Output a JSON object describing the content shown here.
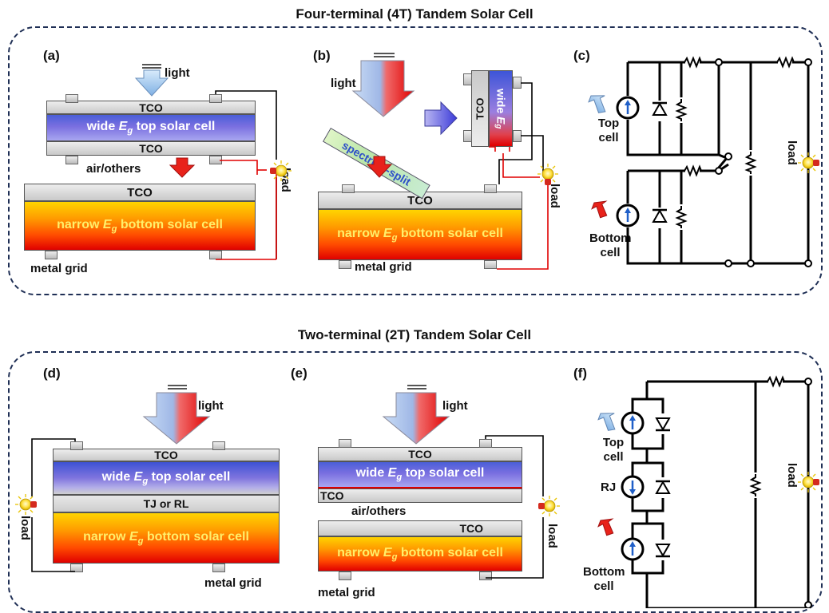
{
  "titles": {
    "four_terminal": "Four-terminal (4T) Tandem Solar Cell",
    "two_terminal": "Two-terminal (2T) Tandem Solar Cell"
  },
  "panels": {
    "a": {
      "label": "(a)",
      "light": "light",
      "tco_top": "TCO",
      "wide_cell": "wide Eg top solar cell",
      "tco_mid": "TCO",
      "air": "air/others",
      "tco_bottom": "TCO",
      "narrow_cell": "narrow Eg bottom solar cell",
      "metal_grid": "metal grid",
      "load": "load"
    },
    "b": {
      "label": "(b)",
      "light": "light",
      "splitter": "spectrum-split",
      "tco_side": "TCO",
      "wide_side": "wide Eg",
      "tco": "TCO",
      "narrow_cell": "narrow Eg bottom solar cell",
      "metal_grid": "metal grid",
      "load": "load"
    },
    "c": {
      "label": "(c)",
      "top_cell": "Top cell",
      "bottom_cell": "Bottom cell",
      "load": "load"
    },
    "d": {
      "label": "(d)",
      "light": "light",
      "tco": "TCO",
      "wide_cell": "wide Eg top solar cell",
      "tj": "TJ or RL",
      "narrow_cell": "narrow Eg bottom solar cell",
      "metal_grid": "metal grid",
      "load": "load"
    },
    "e": {
      "label": "(e)",
      "light": "light",
      "tco_top": "TCO",
      "wide_cell": "wide Eg top solar cell",
      "tco_mid": "TCO",
      "air": "air/others",
      "tco_bottom": "TCO",
      "narrow_cell": "narrow Eg bottom solar cell",
      "metal_grid": "metal grid",
      "load": "load"
    },
    "f": {
      "label": "(f)",
      "top_cell": "Top cell",
      "rj": "RJ",
      "bottom_cell": "Bottom cell",
      "load": "load"
    }
  },
  "colors": {
    "frame": "#1f2f55",
    "wire_red": "#e00000",
    "arrow_blue": "#9cc3ea",
    "arrow_red": "#e8221a"
  }
}
